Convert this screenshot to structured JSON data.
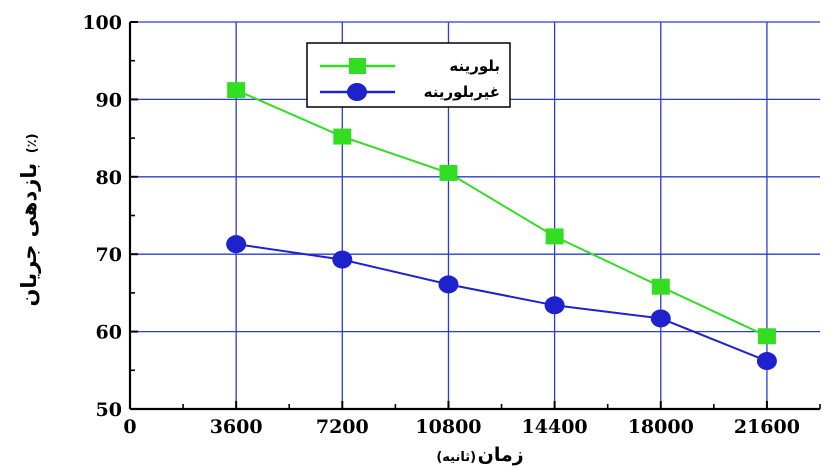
{
  "chart_data": {
    "type": "line",
    "title": "",
    "xlabel": "زمان",
    "xlabel_unit": "(ثانیه)",
    "ylabel": "بازدهی جریان",
    "ylabel_unit": "(٪)",
    "xlim": [
      0,
      23400
    ],
    "ylim": [
      50,
      100
    ],
    "x_ticks": [
      "0",
      "3600",
      "7200",
      "10800",
      "14400",
      "18000",
      "21600"
    ],
    "y_ticks": [
      "50",
      "60",
      "70",
      "80",
      "90",
      "100"
    ],
    "x": [
      3600,
      7200,
      10800,
      14400,
      18000,
      21600
    ],
    "series": [
      {
        "name": "بلورینه",
        "color": "#33dd22",
        "marker": "square",
        "values": [
          91.2,
          85.2,
          80.5,
          72.3,
          65.8,
          59.4
        ]
      },
      {
        "name": "غیربلورینه",
        "color": "#1e22cc",
        "marker": "circle",
        "values": [
          71.3,
          69.3,
          66.1,
          63.4,
          61.7,
          56.2
        ]
      }
    ],
    "grid": true,
    "grid_color": "#2a3bd6",
    "legend_position": "top-center"
  }
}
